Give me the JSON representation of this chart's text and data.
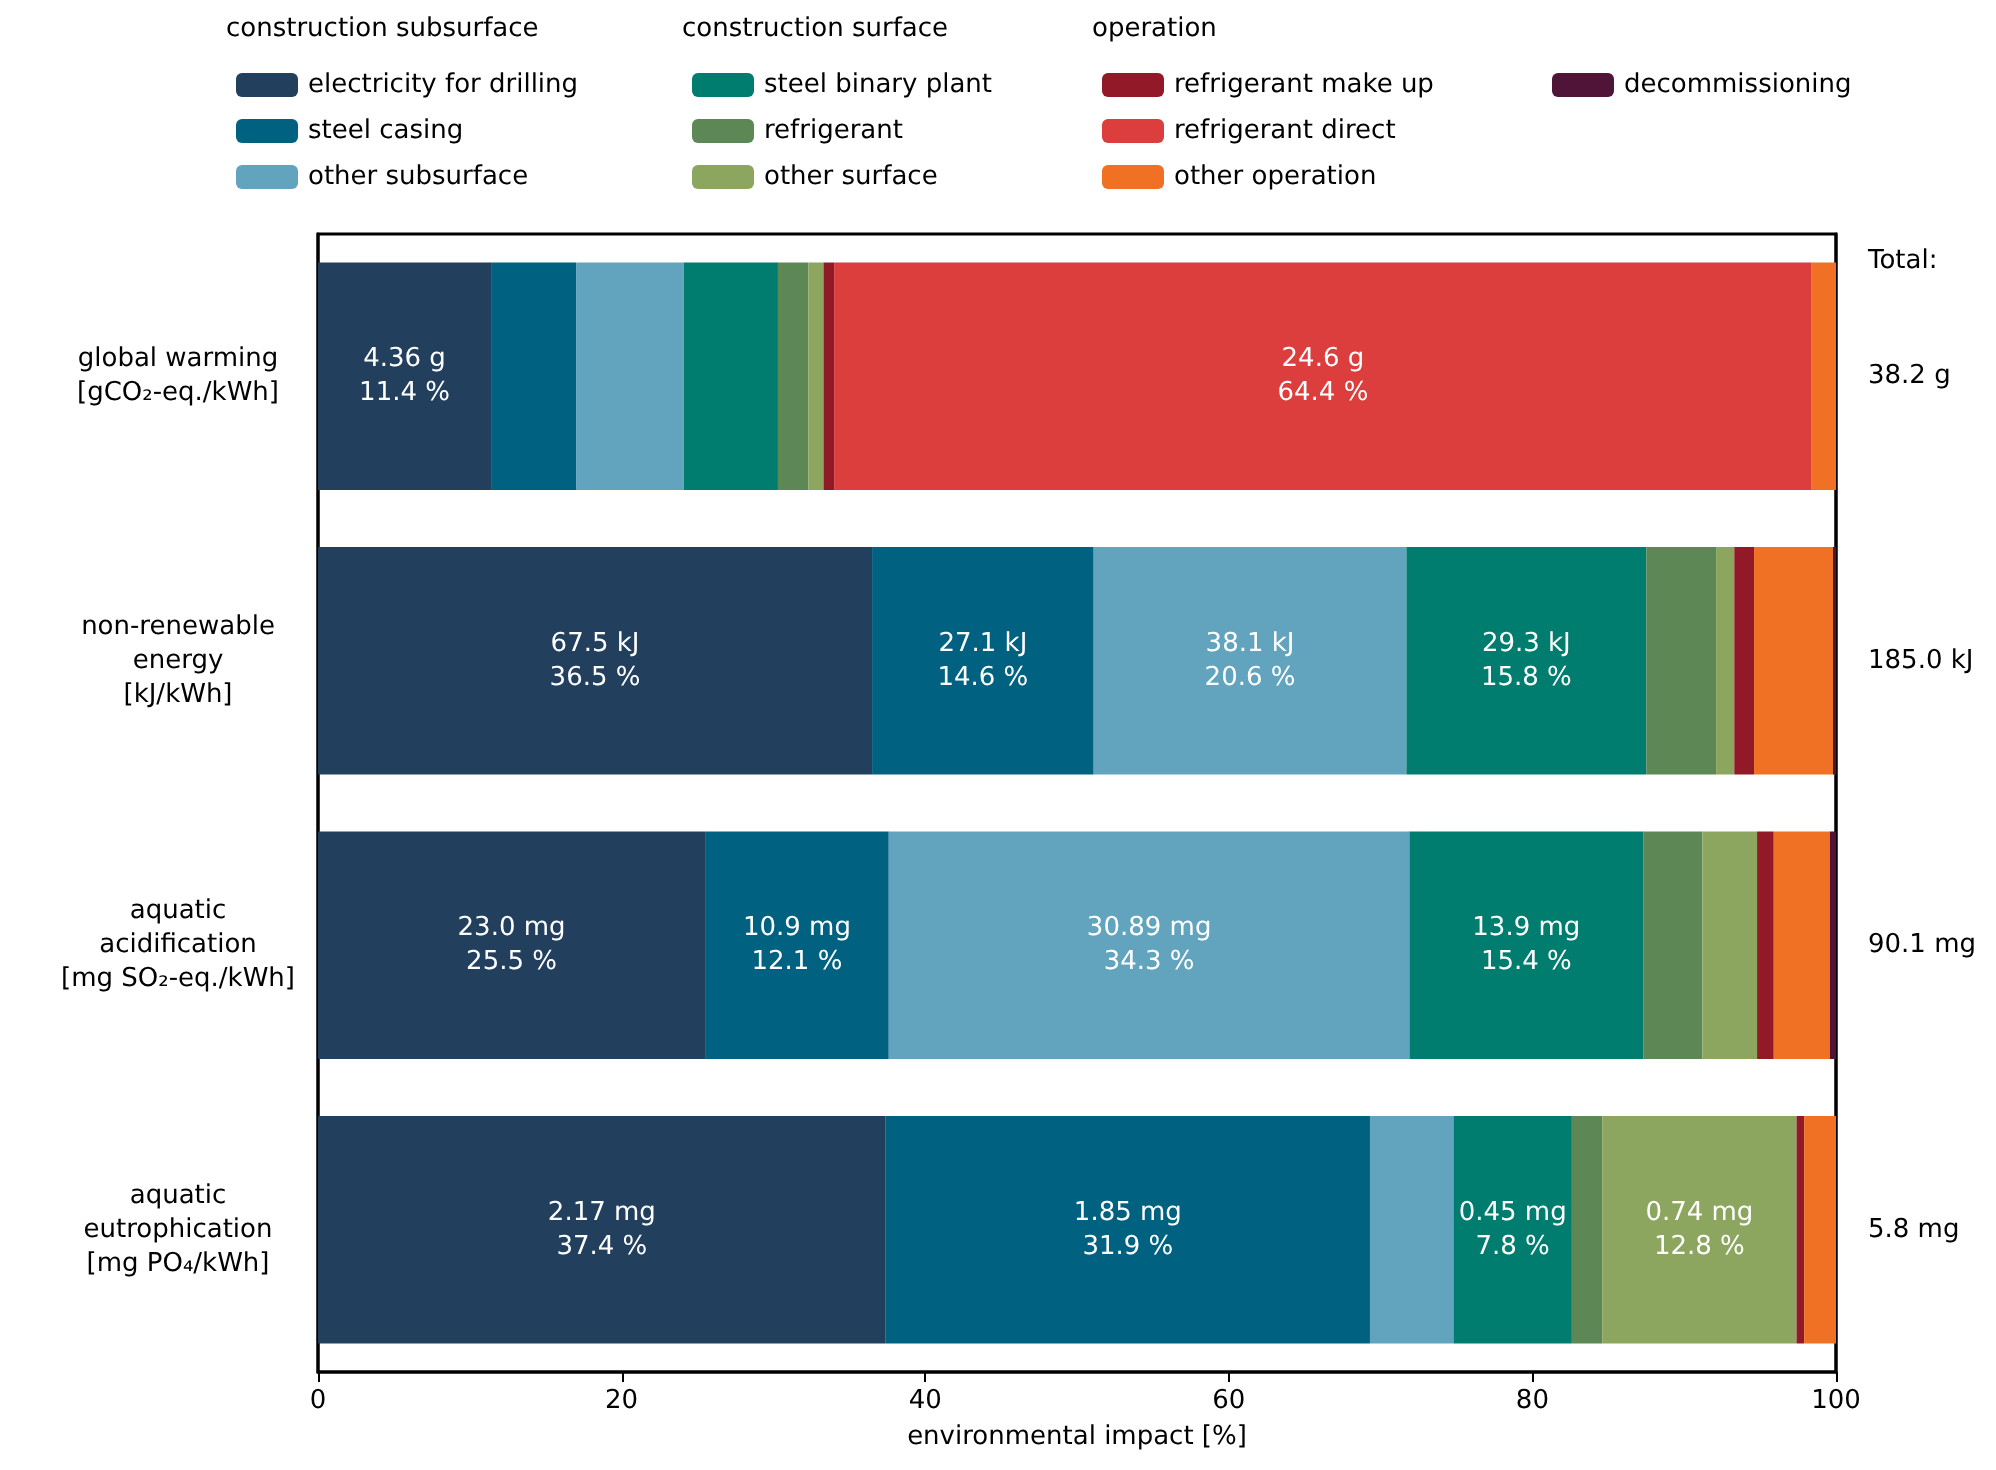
{
  "chart_data": {
    "type": "bar",
    "orientation": "horizontal",
    "stacked": true,
    "categories": [
      "global warming\n[gCO₂-eq./kWh]",
      "non-renewable\nenergy\n[kJ/kWh]",
      "aquatic\nacidification\n[mg SO₂-eq./kWh]",
      "aquatic\neutrophication\n[mg PO₄/kWh]"
    ],
    "series": [
      {
        "name": "electricity for drilling",
        "color": "#223f5e",
        "values": [
          11.4,
          36.5,
          25.5,
          37.4
        ],
        "value_labels": [
          "4.36 g\n11.4 %",
          "67.5 kJ\n36.5 %",
          "23.0 mg\n25.5 %",
          "2.17 mg\n37.4 %"
        ]
      },
      {
        "name": "steel casing",
        "color": "#006280",
        "values": [
          5.6,
          14.6,
          12.1,
          31.9
        ],
        "value_labels": [
          null,
          "27.1 kJ\n14.6 %",
          "10.9 mg\n12.1 %",
          "1.85 mg\n31.9 %"
        ]
      },
      {
        "name": "other subsurface",
        "color": "#62a4bd",
        "values": [
          7.1,
          20.6,
          34.3,
          5.5
        ],
        "value_labels": [
          null,
          "38.1 kJ\n20.6 %",
          "30.89 mg\n34.3 %",
          null
        ]
      },
      {
        "name": "steel binary plant",
        "color": "#007d6e",
        "values": [
          6.2,
          15.8,
          15.4,
          7.8
        ],
        "value_labels": [
          null,
          "29.3 kJ\n15.8 %",
          "13.9 mg\n15.4 %",
          "0.45 mg\n7.8 %"
        ]
      },
      {
        "name": "refrigerant",
        "color": "#5e8756",
        "values": [
          2.0,
          4.6,
          3.9,
          2.0
        ]
      },
      {
        "name": "other surface",
        "color": "#8ca65f",
        "values": [
          1.0,
          1.2,
          3.6,
          12.8
        ],
        "value_labels": [
          null,
          null,
          null,
          "0.74 mg\n12.8 %"
        ]
      },
      {
        "name": "refrigerant make up",
        "color": "#921a28",
        "values": [
          0.7,
          1.3,
          1.1,
          0.5
        ]
      },
      {
        "name": "refrigerant direct",
        "color": "#dc3d3d",
        "values": [
          64.4,
          0,
          0,
          0
        ],
        "value_labels": [
          "24.6 g\n64.4 %",
          null,
          null,
          null
        ]
      },
      {
        "name": "other operation",
        "color": "#f07124",
        "values": [
          1.6,
          5.2,
          3.7,
          2.1
        ]
      },
      {
        "name": "decommissioning",
        "color": "#4f1438",
        "values": [
          0,
          0.2,
          0.4,
          0
        ]
      }
    ],
    "annotations": [
      "construction subsurface",
      "construction surface",
      "operation",
      "Total:",
      "38.2 g",
      "185.0 kJ",
      "90.1 mg",
      "5.8 mg"
    ],
    "xlabel": "environmental impact [%]",
    "xlim": [
      0,
      100
    ],
    "xticks": [
      0,
      20,
      40,
      60,
      80,
      100
    ],
    "legend": "top",
    "grid": false
  }
}
